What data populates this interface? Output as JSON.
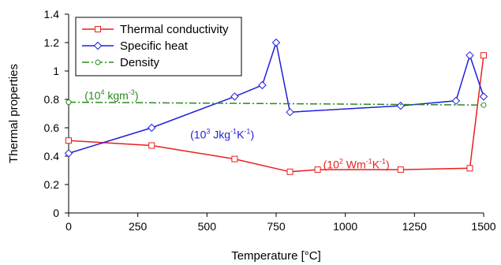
{
  "chart_data": {
    "type": "line",
    "xlabel": "Temperature [°C]",
    "ylabel": "Thermal properties",
    "xlim": [
      0,
      1500
    ],
    "ylim": [
      0,
      1.4
    ],
    "x_ticks": [
      "0",
      "250",
      "500",
      "750",
      "1000",
      "1250",
      "1500"
    ],
    "y_ticks": [
      "0",
      "0.2",
      "0.4",
      "0.6",
      "0.8",
      "1",
      "1.2",
      "1.4"
    ],
    "grid": false,
    "legend_position": "top-left",
    "series": [
      {
        "name": "Thermal conductivity",
        "color": "#e8201c",
        "marker": "square",
        "line_style": "solid",
        "x": [
          0,
          300,
          600,
          800,
          900,
          1200,
          1450,
          1500
        ],
        "y": [
          0.51,
          0.475,
          0.38,
          0.29,
          0.305,
          0.305,
          0.315,
          1.11
        ]
      },
      {
        "name": "Specific heat",
        "color": "#1e1ee0",
        "marker": "diamond",
        "line_style": "solid",
        "x": [
          0,
          300,
          600,
          700,
          750,
          800,
          1200,
          1400,
          1450,
          1500
        ],
        "y": [
          0.42,
          0.6,
          0.82,
          0.9,
          1.2,
          0.71,
          0.755,
          0.79,
          1.11,
          0.82
        ]
      },
      {
        "name": "Density",
        "color": "#2a8a1e",
        "marker": "circle",
        "line_style": "dash-dot",
        "x": [
          0,
          1500
        ],
        "y": [
          0.78,
          0.76
        ]
      }
    ],
    "annotations": [
      {
        "series": "Density",
        "color": "#2a8a1e",
        "x": 155,
        "y": 0.8,
        "base": "(10",
        "sup1": "4",
        "mid": " kgm",
        "sup2": "-3",
        "end": ")"
      },
      {
        "series": "Specific heat",
        "color": "#1e1ee0",
        "x": 555,
        "y": 0.525,
        "base": "(10",
        "sup1": "3",
        "mid": " Jkg",
        "sup2": "-1",
        "mid2": "K",
        "sup3": "-1",
        "end": ")"
      },
      {
        "series": "Thermal conductivity",
        "color": "#e8201c",
        "x": 1040,
        "y": 0.315,
        "base": "(10",
        "sup1": "2",
        "mid": " Wm",
        "sup2": "-1",
        "mid2": "K",
        "sup3": "-1",
        "end": ")"
      }
    ]
  }
}
